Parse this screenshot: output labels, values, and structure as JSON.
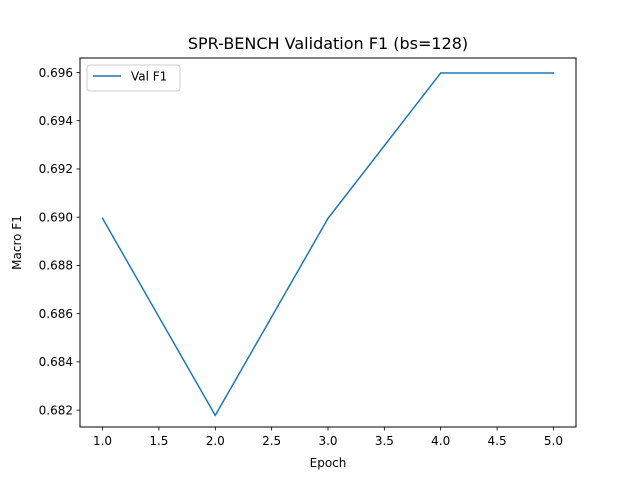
{
  "chart_data": {
    "type": "line",
    "title": "SPR-BENCH Validation F1 (bs=128)",
    "xlabel": "Epoch",
    "ylabel": "Macro F1",
    "x": [
      1,
      2,
      3,
      4,
      5
    ],
    "series": [
      {
        "name": "Val F1",
        "values": [
          0.68995,
          0.68178,
          0.68995,
          0.69598,
          0.69598
        ],
        "color": "#1f77b4"
      }
    ],
    "xlim": [
      0.8,
      5.2
    ],
    "ylim": [
      0.6813,
      0.6966
    ],
    "xticks": [
      1.0,
      1.5,
      2.0,
      2.5,
      3.0,
      3.5,
      4.0,
      4.5,
      5.0
    ],
    "xtick_labels": [
      "1.0",
      "1.5",
      "2.0",
      "2.5",
      "3.0",
      "3.5",
      "4.0",
      "4.5",
      "5.0"
    ],
    "yticks": [
      0.682,
      0.684,
      0.686,
      0.688,
      0.69,
      0.692,
      0.694,
      0.696
    ],
    "ytick_labels": [
      "0.682",
      "0.684",
      "0.686",
      "0.688",
      "0.690",
      "0.692",
      "0.694",
      "0.696"
    ],
    "grid": false,
    "legend": "upper-left"
  }
}
